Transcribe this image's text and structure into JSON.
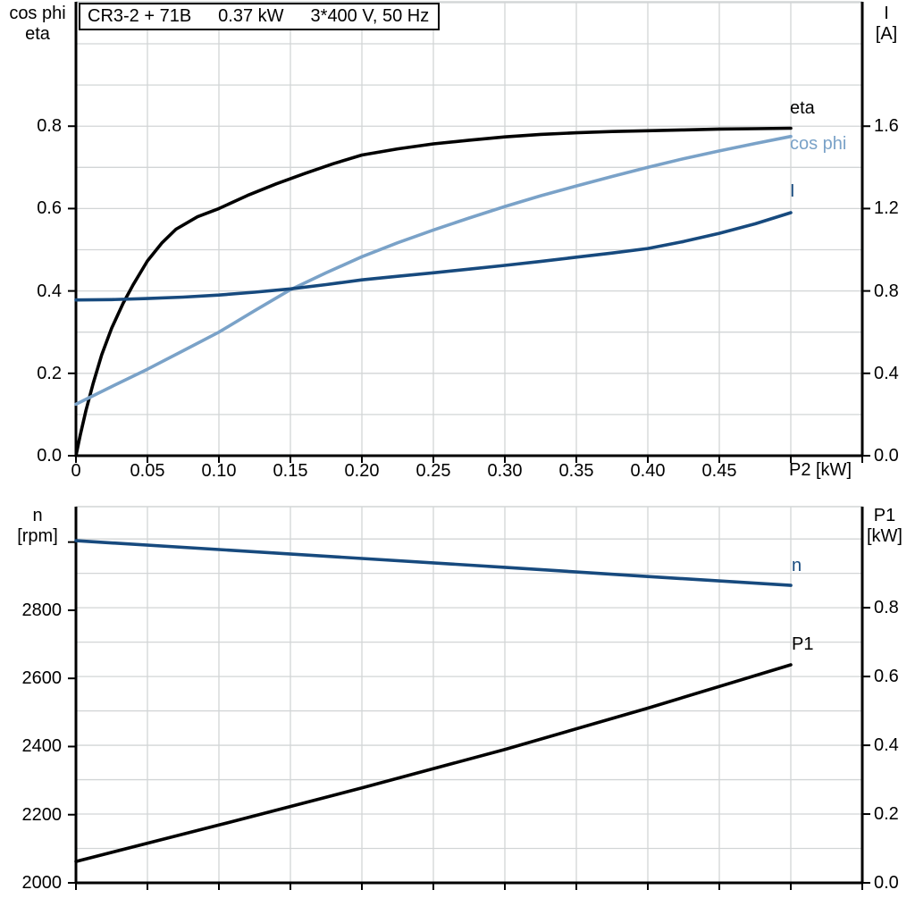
{
  "colors": {
    "curve_black": "#000000",
    "curve_dark_blue": "#174a7e",
    "curve_light_blue": "#7aa2c8",
    "grid": "#d2d5d6",
    "axis": "#000000",
    "background": "#ffffff"
  },
  "title_box": {
    "parts": [
      "CR3-2 + 71B",
      "0.37 kW",
      "3*400 V, 50 Hz"
    ]
  },
  "chart_data": [
    {
      "id": "efficiency-current-chart",
      "type": "line",
      "title": "CR3-2 + 71B 0.37 kW 3*400 V, 50 Hz",
      "grid": true,
      "legend_position": "right-end-labels",
      "x_axis": {
        "label": "P2 [kW]",
        "min": 0,
        "max": 0.55,
        "grid_step": 0.05,
        "tick_values": [
          0,
          0.05,
          0.1,
          0.15,
          0.2,
          0.25,
          0.3,
          0.35,
          0.4,
          0.45
        ],
        "tick_labels": [
          "0",
          "0.05",
          "0.10",
          "0.15",
          "0.20",
          "0.25",
          "0.30",
          "0.35",
          "0.40",
          "0.45"
        ]
      },
      "y_left": {
        "title_lines": [
          "cos phi",
          "eta"
        ],
        "min": 0,
        "max": 1.102,
        "grid_step": 0.1,
        "tick_values": [
          0.0,
          0.2,
          0.4,
          0.6,
          0.8
        ],
        "tick_labels": [
          "0.0",
          "0.2",
          "0.4",
          "0.6",
          "0.8"
        ]
      },
      "y_right": {
        "title_lines": [
          "I",
          "[A]"
        ],
        "min": 0,
        "max": 2.204,
        "tick_values": [
          0.0,
          0.4,
          0.8,
          1.2,
          1.6
        ],
        "tick_labels": [
          "0.0",
          "0.4",
          "0.8",
          "1.2",
          "1.6"
        ]
      },
      "series": [
        {
          "name": "eta",
          "axis": "left",
          "color": "curve_black",
          "x": [
            0,
            0.003,
            0.007,
            0.012,
            0.018,
            0.025,
            0.033,
            0.04,
            0.05,
            0.06,
            0.07,
            0.085,
            0.1,
            0.12,
            0.14,
            0.16,
            0.18,
            0.2,
            0.225,
            0.25,
            0.275,
            0.3,
            0.325,
            0.35,
            0.375,
            0.4,
            0.425,
            0.45,
            0.475,
            0.5
          ],
          "y": [
            0,
            0.05,
            0.11,
            0.175,
            0.245,
            0.31,
            0.37,
            0.415,
            0.473,
            0.516,
            0.55,
            0.58,
            0.6,
            0.632,
            0.66,
            0.685,
            0.709,
            0.73,
            0.745,
            0.757,
            0.766,
            0.774,
            0.78,
            0.784,
            0.787,
            0.789,
            0.791,
            0.793,
            0.794,
            0.795
          ]
        },
        {
          "name": "cos phi",
          "axis": "left",
          "color": "curve_light_blue",
          "x": [
            0,
            0.025,
            0.05,
            0.075,
            0.1,
            0.125,
            0.15,
            0.175,
            0.2,
            0.225,
            0.25,
            0.275,
            0.3,
            0.325,
            0.35,
            0.375,
            0.4,
            0.425,
            0.45,
            0.475,
            0.5
          ],
          "y": [
            0.125,
            0.168,
            0.21,
            0.255,
            0.3,
            0.352,
            0.403,
            0.444,
            0.483,
            0.517,
            0.548,
            0.577,
            0.605,
            0.631,
            0.655,
            0.678,
            0.7,
            0.721,
            0.74,
            0.758,
            0.775
          ]
        },
        {
          "name": "I",
          "axis": "right",
          "color": "curve_dark_blue",
          "x": [
            0,
            0.025,
            0.05,
            0.075,
            0.1,
            0.125,
            0.15,
            0.175,
            0.2,
            0.225,
            0.25,
            0.275,
            0.3,
            0.325,
            0.35,
            0.375,
            0.4,
            0.425,
            0.45,
            0.475,
            0.5
          ],
          "y": [
            0.756,
            0.758,
            0.763,
            0.77,
            0.78,
            0.794,
            0.81,
            0.831,
            0.854,
            0.871,
            0.888,
            0.906,
            0.924,
            0.943,
            0.964,
            0.984,
            1.006,
            1.04,
            1.08,
            1.126,
            1.18
          ]
        }
      ]
    },
    {
      "id": "speed-power-chart",
      "type": "line",
      "grid": true,
      "legend_position": "right-end-labels",
      "x_axis": {
        "label": "",
        "min": 0,
        "max": 0.55,
        "grid_step": 0.05,
        "tick_values": [],
        "tick_labels": []
      },
      "y_left": {
        "title_lines": [
          "n",
          "[rpm]"
        ],
        "min": 2000,
        "max": 3104,
        "tick_values": [
          2000,
          2200,
          2400,
          2600,
          2800
        ],
        "tick_labels": [
          "2000",
          "2200",
          "2400",
          "2600",
          "2800"
        ],
        "extra_tick_values": [
          3000
        ]
      },
      "y_right": {
        "title_lines": [
          "P1",
          "[kW]"
        ],
        "min": 0,
        "max": 1.094,
        "grid_step": 0.1,
        "tick_values": [
          0.0,
          0.2,
          0.4,
          0.6,
          0.8
        ],
        "tick_labels": [
          "0.0",
          "0.2",
          "0.4",
          "0.6",
          "0.8"
        ]
      },
      "series": [
        {
          "name": "n",
          "axis": "left",
          "color": "curve_dark_blue",
          "x": [
            0,
            0.1,
            0.2,
            0.3,
            0.4,
            0.5
          ],
          "y": [
            3004,
            2978,
            2952,
            2926,
            2899,
            2873
          ]
        },
        {
          "name": "P1",
          "axis": "right",
          "color": "curve_black",
          "x": [
            0,
            0.1,
            0.2,
            0.3,
            0.4,
            0.5
          ],
          "y": [
            0.062,
            0.168,
            0.276,
            0.388,
            0.508,
            0.634
          ]
        }
      ]
    }
  ]
}
